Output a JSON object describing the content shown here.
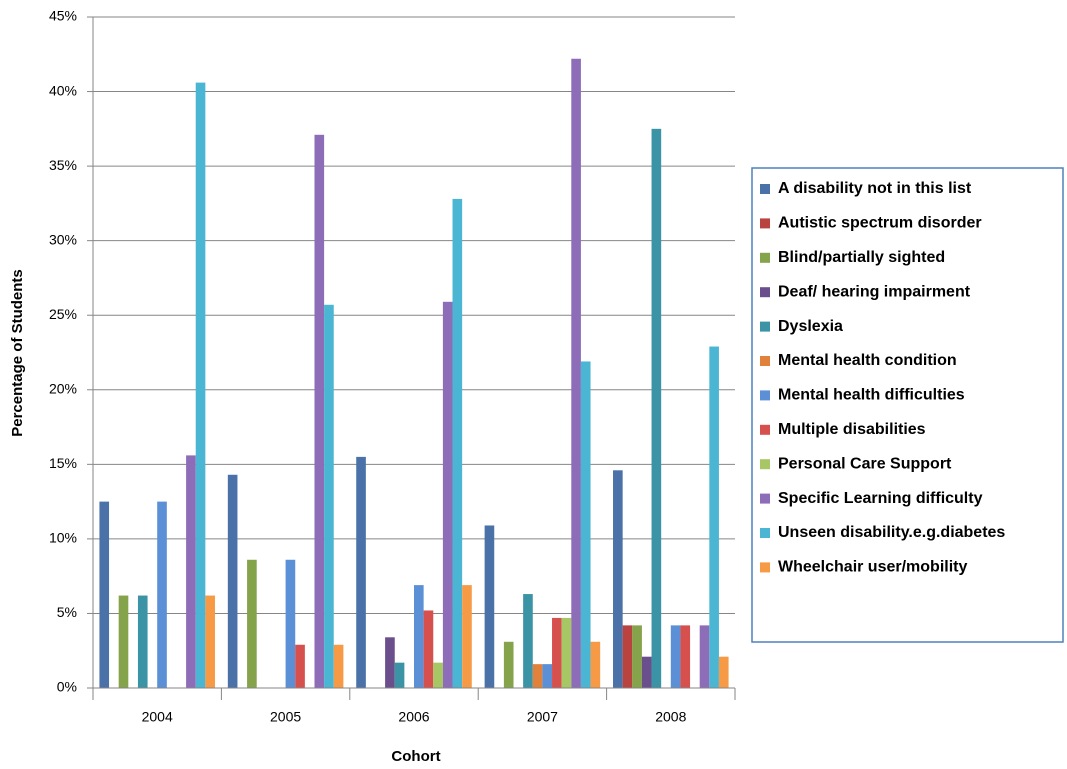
{
  "chart_data": {
    "type": "bar",
    "x_label": "Cohort",
    "y_label": "Percentage of Students",
    "categories": [
      "2004",
      "2005",
      "2006",
      "2007",
      "2008"
    ],
    "ylim": [
      0,
      45
    ],
    "yticks": [
      {
        "value": 0,
        "label": "0%"
      },
      {
        "value": 5,
        "label": "5%"
      },
      {
        "value": 10,
        "label": "10%"
      },
      {
        "value": 15,
        "label": "15%"
      },
      {
        "value": 20,
        "label": "20%"
      },
      {
        "value": 25,
        "label": "25%"
      },
      {
        "value": 30,
        "label": "30%"
      },
      {
        "value": 35,
        "label": "35%"
      },
      {
        "value": 40,
        "label": "40%"
      },
      {
        "value": 45,
        "label": "45%"
      }
    ],
    "grid": true,
    "legend": "right",
    "series": [
      {
        "name": "A disability not in this list",
        "color": "#4A72A8",
        "values": [
          12.5,
          14.3,
          15.5,
          10.9,
          14.6
        ]
      },
      {
        "name": "Autistic spectrum disorder",
        "color": "#B8433F",
        "values": [
          0,
          0,
          0,
          0,
          4.2
        ]
      },
      {
        "name": "Blind/partially sighted",
        "color": "#84A34A",
        "values": [
          6.2,
          8.6,
          0,
          3.1,
          4.2
        ]
      },
      {
        "name": "Deaf/ hearing impairment",
        "color": "#6A4F8C",
        "values": [
          0,
          0,
          3.4,
          0,
          2.1
        ]
      },
      {
        "name": "Dyslexia",
        "color": "#3B93A6",
        "values": [
          6.2,
          0,
          1.7,
          6.3,
          37.5
        ]
      },
      {
        "name": "Mental health condition",
        "color": "#E0823B",
        "values": [
          0,
          0,
          0,
          1.6,
          0
        ]
      },
      {
        "name": "Mental health difficulties",
        "color": "#5B8FD6",
        "values": [
          12.5,
          8.6,
          6.9,
          1.6,
          4.2
        ]
      },
      {
        "name": "Multiple disabilities",
        "color": "#D6504D",
        "values": [
          0,
          2.9,
          5.2,
          4.7,
          4.2
        ]
      },
      {
        "name": "Personal Care Support",
        "color": "#A6C763",
        "values": [
          0,
          0,
          1.7,
          4.7,
          0
        ]
      },
      {
        "name": "Specific Learning difficulty",
        "color": "#8E6DB8",
        "values": [
          15.6,
          37.1,
          25.9,
          42.2,
          4.2
        ]
      },
      {
        "name": "Unseen disability.e.g.diabetes",
        "color": "#4BB6D3",
        "values": [
          40.6,
          25.7,
          32.8,
          21.9,
          22.9
        ]
      },
      {
        "name": "Wheelchair user/mobility",
        "color": "#F79A45",
        "values": [
          6.2,
          2.9,
          6.9,
          3.1,
          2.1
        ]
      }
    ]
  }
}
